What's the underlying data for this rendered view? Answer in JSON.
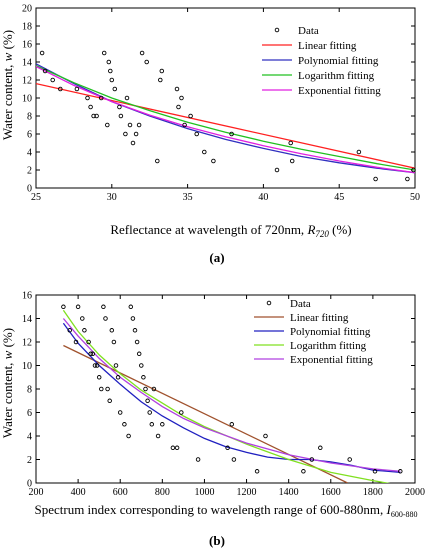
{
  "chart_data": [
    {
      "type": "scatter",
      "panel_label": "(a)",
      "xlabel": "Reflectance at wavelength of 720nm, ",
      "xlabel_symbol": "R",
      "xlabel_sub": "720",
      "xlabel_unit": " (%)",
      "ylabel": "Water content, ",
      "ylabel_symbol": "w",
      "ylabel_unit": " (%)",
      "xlim": [
        25,
        50
      ],
      "ylim": [
        0,
        20
      ],
      "xticks": [
        25,
        30,
        35,
        40,
        45,
        50
      ],
      "yticks": [
        0,
        2,
        4,
        6,
        8,
        10,
        12,
        14,
        16,
        18,
        20
      ],
      "legend_position": "top-right",
      "colors": {
        "data": "#000000",
        "linear": "#ff2020",
        "polynomial": "#3030c0",
        "logarithm": "#20c020",
        "exponential": "#e020e0"
      },
      "points": {
        "name": "Data",
        "x": [
          25.4,
          25.6,
          26.1,
          26.6,
          27.7,
          28.4,
          28.6,
          28.8,
          29.0,
          29.3,
          29.5,
          29.7,
          29.8,
          29.9,
          30.0,
          30.2,
          30.5,
          30.6,
          30.9,
          31.0,
          31.2,
          31.4,
          31.6,
          31.8,
          32.0,
          32.3,
          33.0,
          33.2,
          33.3,
          34.3,
          34.4,
          34.6,
          34.8,
          35.2,
          35.6,
          36.1,
          36.7,
          37.9,
          40.9,
          41.8,
          41.9,
          46.3,
          47.4,
          49.5,
          49.9
        ],
        "y": [
          15.0,
          13.0,
          12.0,
          11.0,
          11.0,
          10.0,
          9.0,
          8.0,
          8.0,
          10.0,
          15.0,
          7.0,
          14.0,
          13.0,
          12.0,
          11.0,
          9.0,
          8.0,
          6.0,
          10.0,
          7.0,
          5.0,
          6.0,
          7.0,
          15.0,
          14.0,
          3.0,
          12.0,
          13.0,
          11.0,
          9.0,
          10.0,
          7.0,
          8.0,
          6.0,
          4.0,
          3.0,
          6.0,
          2.0,
          5.0,
          3.0,
          4.0,
          1.0,
          1.0,
          2.0
        ]
      },
      "series": [
        {
          "name": "Linear fitting",
          "x": [
            25,
            50
          ],
          "y": [
            11.6,
            2.2
          ]
        },
        {
          "name": "Polynomial fitting",
          "x": [
            25,
            27.5,
            30,
            32.5,
            35,
            37.5,
            40,
            42.5,
            45,
            47.5,
            50
          ],
          "y": [
            13.8,
            11.6,
            9.6,
            8.0,
            6.6,
            5.4,
            4.4,
            3.5,
            2.8,
            2.2,
            1.7
          ]
        },
        {
          "name": "Logarithm fitting",
          "x": [
            25,
            27.5,
            30,
            32.5,
            35,
            37.5,
            40,
            42.5,
            45,
            47.5,
            50
          ],
          "y": [
            13.6,
            11.7,
            10.0,
            8.6,
            7.3,
            6.2,
            5.2,
            4.3,
            3.5,
            2.7,
            2.0
          ]
        },
        {
          "name": "Exponential fitting",
          "x": [
            25,
            27.5,
            30,
            32.5,
            35,
            37.5,
            40,
            42.5,
            45,
            47.5,
            50
          ],
          "y": [
            13.5,
            11.4,
            9.6,
            8.1,
            6.8,
            5.7,
            4.7,
            3.8,
            3.0,
            2.3,
            1.7
          ]
        }
      ]
    },
    {
      "type": "scatter",
      "panel_label": "(b)",
      "xlabel": "Spectrum index corresponding to wavelength range of 600-880nm, ",
      "xlabel_symbol": "I",
      "xlabel_sub": "600-880",
      "xlabel_unit": "",
      "ylabel": "Water content, ",
      "ylabel_symbol": "w",
      "ylabel_unit": " (%)",
      "xlim": [
        200,
        2000
      ],
      "ylim": [
        0,
        16
      ],
      "xticks": [
        200,
        400,
        600,
        800,
        1000,
        1200,
        1400,
        1600,
        1800,
        2000
      ],
      "yticks": [
        0,
        2,
        4,
        6,
        8,
        10,
        12,
        14,
        16
      ],
      "legend_position": "top-right",
      "colors": {
        "data": "#000000",
        "linear": "#a0522d",
        "polynomial": "#2020c0",
        "logarithm": "#80e020",
        "exponential": "#b040e0"
      },
      "points": {
        "name": "Data",
        "x": [
          330,
          360,
          390,
          400,
          420,
          430,
          450,
          460,
          470,
          480,
          490,
          500,
          510,
          520,
          530,
          540,
          550,
          560,
          570,
          580,
          590,
          600,
          620,
          640,
          650,
          660,
          670,
          680,
          690,
          700,
          710,
          720,
          730,
          740,
          750,
          760,
          780,
          800,
          850,
          870,
          890,
          970,
          1110,
          1130,
          1140,
          1250,
          1290,
          1470,
          1510,
          1550,
          1690,
          1810,
          1930
        ],
        "y": [
          15.0,
          13.0,
          12.0,
          15.0,
          14.0,
          13.0,
          12.0,
          11.0,
          11.0,
          10.0,
          10.0,
          9.0,
          8.0,
          15.0,
          14.0,
          8.0,
          7.0,
          13.0,
          12.0,
          10.0,
          9.0,
          6.0,
          5.0,
          4.0,
          15.0,
          14.0,
          13.0,
          12.0,
          11.0,
          10.0,
          9.0,
          8.0,
          7.0,
          6.0,
          5.0,
          8.0,
          4.0,
          5.0,
          3.0,
          3.0,
          6.0,
          2.0,
          3.0,
          5.0,
          2.0,
          1.0,
          4.0,
          1.0,
          2.0,
          3.0,
          2.0,
          1.0,
          1.0
        ]
      },
      "series": [
        {
          "name": "Linear fitting",
          "x": [
            330,
            1680
          ],
          "y": [
            11.7,
            0.0
          ]
        },
        {
          "name": "Polynomial fitting",
          "x": [
            330,
            400,
            500,
            600,
            700,
            800,
            900,
            1000,
            1100,
            1200,
            1300,
            1400,
            1500,
            1600,
            1700,
            1800,
            1930
          ],
          "y": [
            13.6,
            11.9,
            10.0,
            8.4,
            6.9,
            5.7,
            4.7,
            3.8,
            3.1,
            2.6,
            2.2,
            2.0,
            2.0,
            1.8,
            1.5,
            1.1,
            0.9
          ]
        },
        {
          "name": "Logarithm fitting",
          "x": [
            330,
            400,
            500,
            600,
            700,
            800,
            900,
            1000,
            1200,
            1400,
            1600,
            1800,
            1930
          ],
          "y": [
            14.7,
            12.9,
            10.9,
            9.3,
            7.9,
            6.8,
            5.7,
            4.8,
            3.3,
            2.0,
            0.9,
            0.2,
            -0.2
          ]
        },
        {
          "name": "Exponential fitting",
          "x": [
            330,
            400,
            500,
            600,
            700,
            800,
            900,
            1000,
            1200,
            1400,
            1600,
            1800,
            1930
          ],
          "y": [
            14.0,
            12.5,
            10.6,
            9.0,
            7.7,
            6.5,
            5.5,
            4.7,
            3.4,
            2.4,
            1.7,
            1.2,
            1.0
          ]
        }
      ]
    }
  ]
}
